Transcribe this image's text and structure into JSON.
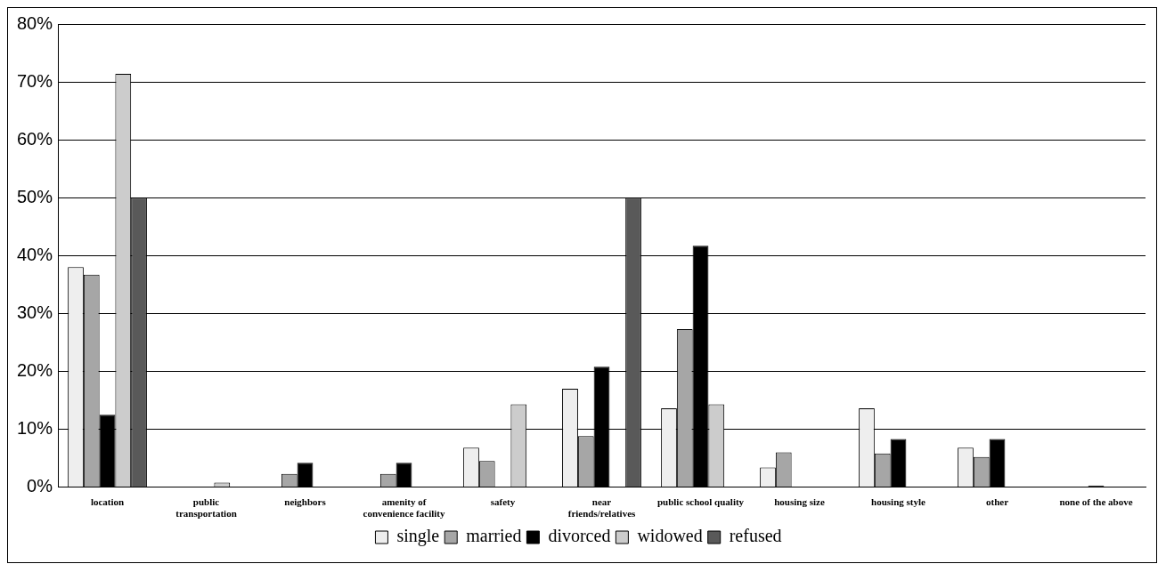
{
  "chart_data": {
    "type": "bar",
    "categories": [
      "location",
      "public transportation",
      "neighbors",
      "amenity of convenience facility",
      "safety",
      "near friends/relatives",
      "public school quality",
      "housing size",
      "housing style",
      "other",
      "none of the above"
    ],
    "series": [
      {
        "name": "single",
        "color": "#eeeeee",
        "values": [
          38,
          0,
          0,
          0,
          6.8,
          17,
          13.6,
          3.4,
          13.6,
          6.8,
          0
        ]
      },
      {
        "name": "married",
        "color": "#a6a6a6",
        "values": [
          36.7,
          0,
          2.3,
          2.3,
          4.5,
          8.8,
          27.3,
          6,
          5.8,
          5.2,
          0
        ]
      },
      {
        "name": "divorced",
        "color": "#000000",
        "values": [
          12.5,
          0,
          4.2,
          4.2,
          0,
          20.8,
          41.7,
          0,
          8.3,
          8.3,
          0.3
        ]
      },
      {
        "name": "widowed",
        "color": "#cccccc",
        "values": [
          71.4,
          0.8,
          0,
          0,
          14.3,
          0,
          14.3,
          0,
          0,
          0,
          0
        ]
      },
      {
        "name": "refused",
        "color": "#595959",
        "values": [
          50,
          0,
          0,
          0,
          0,
          50,
          0,
          0,
          0,
          0,
          0
        ]
      }
    ],
    "ylim": [
      0,
      80
    ],
    "yticks": [
      {
        "value": 0,
        "label": "0%"
      },
      {
        "value": 10,
        "label": "10%"
      },
      {
        "value": 20,
        "label": "20%"
      },
      {
        "value": 30,
        "label": "30%"
      },
      {
        "value": 40,
        "label": "40%"
      },
      {
        "value": 50,
        "label": "50%"
      },
      {
        "value": 60,
        "label": "60%"
      },
      {
        "value": 70,
        "label": "70%"
      },
      {
        "value": 80,
        "label": "80%"
      }
    ],
    "grid": "y",
    "legend": "bottom"
  }
}
